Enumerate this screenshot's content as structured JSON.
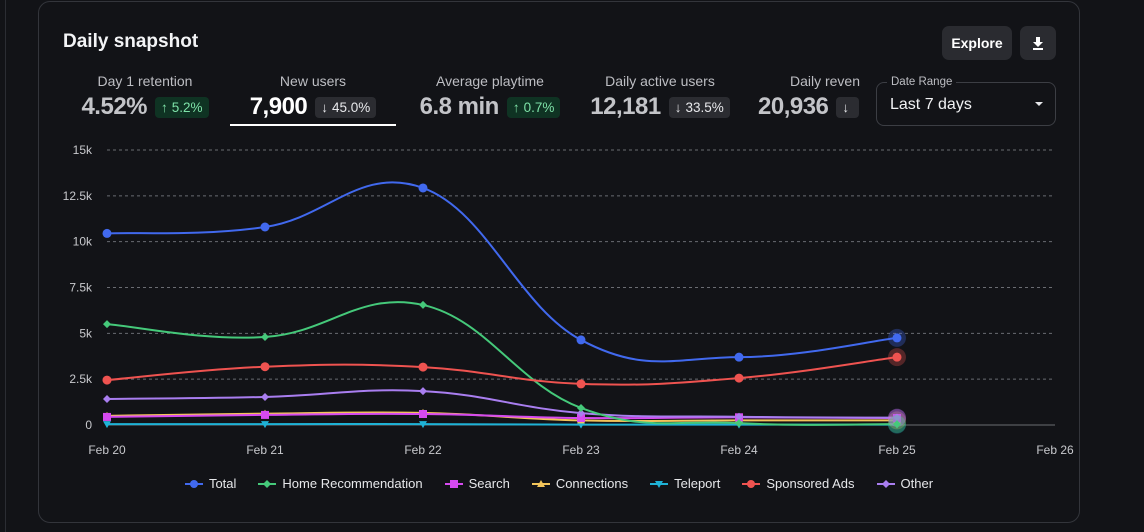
{
  "card": {
    "title": "Daily snapshot",
    "explore_label": "Explore",
    "download_icon": "download-icon"
  },
  "tabs": [
    {
      "label": "Day 1 retention",
      "value": "4.52%",
      "change": "5.2%",
      "direction": "up",
      "active": false
    },
    {
      "label": "New users",
      "value": "7,900",
      "change": "45.0%",
      "direction": "down",
      "active": true
    },
    {
      "label": "Average playtime",
      "value": "6.8 min",
      "change": "0.7%",
      "direction": "up",
      "active": false
    },
    {
      "label": "Daily active users",
      "value": "12,181",
      "change": "33.5%",
      "direction": "down",
      "active": false
    },
    {
      "label": "Daily reven",
      "value": "20,936",
      "change": "",
      "direction": "down",
      "active": false
    }
  ],
  "date_range": {
    "label": "Date Range",
    "value": "Last 7 days"
  },
  "colors": {
    "total": "#4169ee",
    "home": "#45c97a",
    "search": "#d64af0",
    "connections": "#f2c45a",
    "teleport": "#1fb2d6",
    "sponsored": "#ef5350",
    "other": "#a97ef0"
  },
  "chart_data": {
    "type": "line",
    "title": "",
    "xlabel": "",
    "ylabel": "",
    "x": [
      "Feb 20",
      "Feb 21",
      "Feb 22",
      "Feb 23",
      "Feb 24",
      "Feb 25",
      "Feb 26"
    ],
    "y_ticks": [
      "0",
      "2.5k",
      "5k",
      "7.5k",
      "10k",
      "12.5k",
      "15k"
    ],
    "ylim": [
      0,
      15000
    ],
    "grid": true,
    "legend_position": "bottom",
    "series": [
      {
        "name": "Total",
        "key": "total",
        "marker": "circle",
        "values": [
          10450,
          10800,
          12930,
          4640,
          3700,
          4750
        ]
      },
      {
        "name": "Home Recommendation",
        "key": "home",
        "marker": "diamond",
        "values": [
          5500,
          4800,
          6550,
          930,
          100,
          50
        ]
      },
      {
        "name": "Search",
        "key": "search",
        "marker": "square",
        "values": [
          440,
          550,
          600,
          380,
          420,
          380
        ]
      },
      {
        "name": "Connections",
        "key": "connections",
        "marker": "triangle-up",
        "values": [
          500,
          620,
          660,
          250,
          250,
          250
        ]
      },
      {
        "name": "Teleport",
        "key": "teleport",
        "marker": "triangle-down",
        "values": [
          50,
          50,
          50,
          20,
          20,
          20
        ]
      },
      {
        "name": "Sponsored Ads",
        "key": "sponsored",
        "marker": "circle",
        "values": [
          2450,
          3180,
          3160,
          2240,
          2560,
          3700
        ]
      },
      {
        "name": "Other",
        "key": "other",
        "marker": "diamond",
        "values": [
          1420,
          1530,
          1850,
          650,
          450,
          400
        ]
      }
    ]
  }
}
